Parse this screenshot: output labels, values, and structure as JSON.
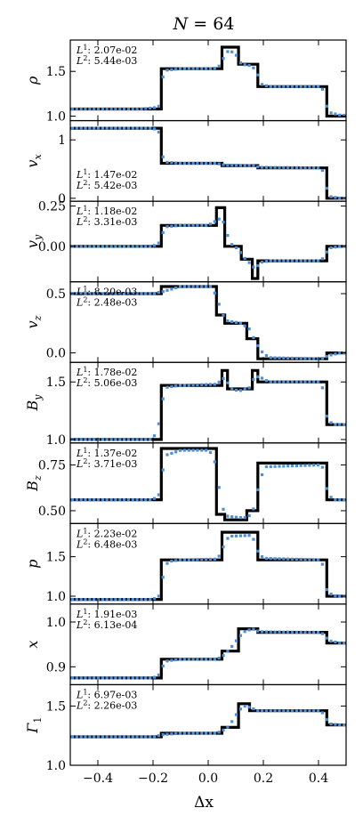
{
  "figure": {
    "title": "N = 64",
    "title_var": "N",
    "title_val": "= 64",
    "xlabel": "Δx"
  },
  "chart_data": [
    {
      "type": "line",
      "ylabel": "ρ",
      "ylim": [
        0.95,
        1.85
      ],
      "yticks": [
        1.0,
        1.5
      ],
      "ytick_labels": [
        "1.0",
        "1.5"
      ],
      "errors": {
        "L1": "2.07e-02",
        "L2": "5.44e-03"
      },
      "exact": [
        [
          -0.5,
          1.08
        ],
        [
          -0.17,
          1.08
        ],
        [
          -0.17,
          1.53
        ],
        [
          0.05,
          1.53
        ],
        [
          0.05,
          1.77
        ],
        [
          0.11,
          1.77
        ],
        [
          0.11,
          1.58
        ],
        [
          0.18,
          1.58
        ],
        [
          0.18,
          1.33
        ],
        [
          0.43,
          1.33
        ],
        [
          0.43,
          1.0
        ],
        [
          0.5,
          1.0
        ]
      ],
      "numerical": [
        [
          -0.48,
          1.08
        ],
        [
          -0.24,
          1.08
        ],
        [
          -0.18,
          1.1
        ],
        [
          -0.17,
          1.32
        ],
        [
          -0.16,
          1.51
        ],
        [
          -0.1,
          1.53
        ],
        [
          0.02,
          1.53
        ],
        [
          0.04,
          1.56
        ],
        [
          0.05,
          1.62
        ],
        [
          0.07,
          1.72
        ],
        [
          0.08,
          1.73
        ],
        [
          0.1,
          1.69
        ],
        [
          0.12,
          1.58
        ],
        [
          0.16,
          1.56
        ],
        [
          0.18,
          1.46
        ],
        [
          0.19,
          1.36
        ],
        [
          0.22,
          1.33
        ],
        [
          0.41,
          1.33
        ],
        [
          0.42,
          1.26
        ],
        [
          0.43,
          1.11
        ],
        [
          0.44,
          1.04
        ],
        [
          0.48,
          1.01
        ]
      ]
    },
    {
      "type": "line",
      "ylabel": "v_x",
      "ylim": [
        -0.05,
        1.33
      ],
      "yticks": [
        0,
        1
      ],
      "ytick_labels": [
        "0",
        "1"
      ],
      "errors": {
        "L1": "1.47e-02",
        "L2": "5.42e-03"
      },
      "exact": [
        [
          -0.5,
          1.2
        ],
        [
          -0.17,
          1.2
        ],
        [
          -0.17,
          0.6
        ],
        [
          0.05,
          0.6
        ],
        [
          0.05,
          0.56
        ],
        [
          0.18,
          0.56
        ],
        [
          0.18,
          0.52
        ],
        [
          0.43,
          0.52
        ],
        [
          0.43,
          0.0
        ],
        [
          0.5,
          0.0
        ]
      ],
      "numerical": [
        [
          -0.48,
          1.2
        ],
        [
          -0.2,
          1.2
        ],
        [
          -0.18,
          1.15
        ],
        [
          -0.17,
          0.85
        ],
        [
          -0.16,
          0.62
        ],
        [
          -0.1,
          0.6
        ],
        [
          0.03,
          0.6
        ],
        [
          0.06,
          0.57
        ],
        [
          0.16,
          0.56
        ],
        [
          0.19,
          0.53
        ],
        [
          0.41,
          0.52
        ],
        [
          0.42,
          0.42
        ],
        [
          0.43,
          0.17
        ],
        [
          0.44,
          0.03
        ],
        [
          0.48,
          0.0
        ]
      ]
    },
    {
      "type": "line",
      "ylabel": "v_y",
      "ylim": [
        -0.22,
        0.28
      ],
      "yticks": [
        0.0,
        0.25
      ],
      "ytick_labels": [
        "0.00",
        "0.25"
      ],
      "errors": {
        "L1": "1.18e-02",
        "L2": "3.31e-03"
      },
      "exact": [
        [
          -0.5,
          0.0
        ],
        [
          -0.17,
          0.0
        ],
        [
          -0.17,
          0.13
        ],
        [
          0.03,
          0.13
        ],
        [
          0.03,
          0.24
        ],
        [
          0.06,
          0.24
        ],
        [
          0.06,
          0.0
        ],
        [
          0.12,
          0.0
        ],
        [
          0.12,
          -0.08
        ],
        [
          0.16,
          -0.08
        ],
        [
          0.16,
          -0.2
        ],
        [
          0.18,
          -0.2
        ],
        [
          0.18,
          -0.09
        ],
        [
          0.43,
          -0.09
        ],
        [
          0.43,
          0.0
        ],
        [
          0.5,
          0.0
        ]
      ],
      "numerical": [
        [
          -0.48,
          0.0
        ],
        [
          -0.2,
          0.0
        ],
        [
          -0.17,
          0.03
        ],
        [
          -0.16,
          0.12
        ],
        [
          -0.1,
          0.13
        ],
        [
          0.0,
          0.13
        ],
        [
          0.03,
          0.16
        ],
        [
          0.05,
          0.18
        ],
        [
          0.06,
          0.12
        ],
        [
          0.08,
          0.02
        ],
        [
          0.11,
          -0.02
        ],
        [
          0.13,
          -0.07
        ],
        [
          0.16,
          -0.12
        ],
        [
          0.17,
          -0.14
        ],
        [
          0.19,
          -0.1
        ],
        [
          0.22,
          -0.09
        ],
        [
          0.41,
          -0.09
        ],
        [
          0.42,
          -0.06
        ],
        [
          0.44,
          -0.01
        ],
        [
          0.48,
          0.0
        ]
      ]
    },
    {
      "type": "line",
      "ylabel": "v_z",
      "ylim": [
        -0.08,
        0.6
      ],
      "yticks": [
        0.0,
        0.5
      ],
      "ytick_labels": [
        "0.0",
        "0.5"
      ],
      "errors": {
        "L1": "8.20e-03",
        "L2": "2.48e-03"
      },
      "exact": [
        [
          -0.5,
          0.5
        ],
        [
          -0.17,
          0.5
        ],
        [
          -0.17,
          0.56
        ],
        [
          0.03,
          0.56
        ],
        [
          0.03,
          0.32
        ],
        [
          0.06,
          0.32
        ],
        [
          0.06,
          0.25
        ],
        [
          0.14,
          0.25
        ],
        [
          0.14,
          0.12
        ],
        [
          0.18,
          0.12
        ],
        [
          0.18,
          -0.05
        ],
        [
          0.43,
          -0.05
        ],
        [
          0.43,
          0.0
        ],
        [
          0.5,
          0.0
        ]
      ],
      "numerical": [
        [
          -0.48,
          0.5
        ],
        [
          -0.2,
          0.5
        ],
        [
          -0.16,
          0.52
        ],
        [
          -0.1,
          0.56
        ],
        [
          0.01,
          0.56
        ],
        [
          0.03,
          0.48
        ],
        [
          0.05,
          0.33
        ],
        [
          0.07,
          0.27
        ],
        [
          0.12,
          0.25
        ],
        [
          0.15,
          0.2
        ],
        [
          0.17,
          0.1
        ],
        [
          0.19,
          0.02
        ],
        [
          0.22,
          -0.04
        ],
        [
          0.41,
          -0.05
        ],
        [
          0.44,
          -0.02
        ],
        [
          0.48,
          0.0
        ]
      ]
    },
    {
      "type": "line",
      "ylabel": "B_y",
      "ylim": [
        0.97,
        1.67
      ],
      "yticks": [
        1.0,
        1.5
      ],
      "ytick_labels": [
        "1.0",
        "1.5"
      ],
      "errors": {
        "L1": "1.78e-02",
        "L2": "5.06e-03"
      },
      "exact": [
        [
          -0.5,
          1.0
        ],
        [
          -0.17,
          1.0
        ],
        [
          -0.17,
          1.47
        ],
        [
          0.05,
          1.47
        ],
        [
          0.05,
          1.6
        ],
        [
          0.07,
          1.6
        ],
        [
          0.07,
          1.44
        ],
        [
          0.16,
          1.44
        ],
        [
          0.16,
          1.6
        ],
        [
          0.18,
          1.6
        ],
        [
          0.18,
          1.5
        ],
        [
          0.43,
          1.5
        ],
        [
          0.43,
          1.13
        ],
        [
          0.5,
          1.13
        ]
      ],
      "numerical": [
        [
          -0.48,
          1.0
        ],
        [
          -0.2,
          1.0
        ],
        [
          -0.17,
          1.2
        ],
        [
          -0.16,
          1.45
        ],
        [
          -0.1,
          1.47
        ],
        [
          0.03,
          1.48
        ],
        [
          0.05,
          1.52
        ],
        [
          0.06,
          1.54
        ],
        [
          0.08,
          1.45
        ],
        [
          0.11,
          1.42
        ],
        [
          0.15,
          1.45
        ],
        [
          0.17,
          1.55
        ],
        [
          0.19,
          1.54
        ],
        [
          0.22,
          1.5
        ],
        [
          0.41,
          1.5
        ],
        [
          0.42,
          1.38
        ],
        [
          0.43,
          1.2
        ],
        [
          0.45,
          1.13
        ],
        [
          0.48,
          1.13
        ]
      ]
    },
    {
      "type": "line",
      "ylabel": "B_z",
      "ylim": [
        0.43,
        0.87
      ],
      "yticks": [
        0.5,
        0.75
      ],
      "ytick_labels": [
        "0.50",
        "0.75"
      ],
      "errors": {
        "L1": "1.37e-02",
        "L2": "3.71e-03"
      },
      "exact": [
        [
          -0.5,
          0.56
        ],
        [
          -0.17,
          0.56
        ],
        [
          -0.17,
          0.84
        ],
        [
          0.03,
          0.84
        ],
        [
          0.03,
          0.48
        ],
        [
          0.06,
          0.48
        ],
        [
          0.06,
          0.45
        ],
        [
          0.14,
          0.45
        ],
        [
          0.14,
          0.5
        ],
        [
          0.18,
          0.5
        ],
        [
          0.18,
          0.76
        ],
        [
          0.43,
          0.76
        ],
        [
          0.43,
          0.56
        ],
        [
          0.5,
          0.56
        ]
      ],
      "numerical": [
        [
          -0.48,
          0.56
        ],
        [
          -0.2,
          0.56
        ],
        [
          -0.17,
          0.6
        ],
        [
          -0.16,
          0.8
        ],
        [
          -0.1,
          0.83
        ],
        [
          0.0,
          0.83
        ],
        [
          0.02,
          0.8
        ],
        [
          0.04,
          0.62
        ],
        [
          0.05,
          0.52
        ],
        [
          0.07,
          0.47
        ],
        [
          0.13,
          0.46
        ],
        [
          0.16,
          0.48
        ],
        [
          0.17,
          0.55
        ],
        [
          0.19,
          0.68
        ],
        [
          0.21,
          0.74
        ],
        [
          0.41,
          0.75
        ],
        [
          0.42,
          0.72
        ],
        [
          0.43,
          0.62
        ],
        [
          0.45,
          0.56
        ],
        [
          0.48,
          0.56
        ]
      ]
    },
    {
      "type": "line",
      "ylabel": "p",
      "ylim": [
        0.9,
        1.92
      ],
      "yticks": [
        1.0,
        1.5
      ],
      "ytick_labels": [
        "1.0",
        "1.5"
      ],
      "errors": {
        "L1": "2.23e-02",
        "L2": "6.48e-03"
      },
      "exact": [
        [
          -0.5,
          0.96
        ],
        [
          -0.17,
          0.96
        ],
        [
          -0.17,
          1.46
        ],
        [
          0.05,
          1.46
        ],
        [
          0.05,
          1.81
        ],
        [
          0.18,
          1.81
        ],
        [
          0.18,
          1.46
        ],
        [
          0.43,
          1.46
        ],
        [
          0.43,
          1.0
        ],
        [
          0.5,
          1.0
        ]
      ],
      "numerical": [
        [
          -0.48,
          0.96
        ],
        [
          -0.2,
          0.96
        ],
        [
          -0.17,
          1.02
        ],
        [
          -0.16,
          1.38
        ],
        [
          -0.14,
          1.44
        ],
        [
          -0.1,
          1.46
        ],
        [
          0.03,
          1.47
        ],
        [
          0.05,
          1.55
        ],
        [
          0.06,
          1.7
        ],
        [
          0.08,
          1.76
        ],
        [
          0.15,
          1.77
        ],
        [
          0.17,
          1.7
        ],
        [
          0.18,
          1.57
        ],
        [
          0.2,
          1.48
        ],
        [
          0.41,
          1.46
        ],
        [
          0.42,
          1.33
        ],
        [
          0.43,
          1.08
        ],
        [
          0.45,
          1.01
        ],
        [
          0.48,
          1.0
        ]
      ]
    },
    {
      "type": "line",
      "ylabel": "x",
      "ylim": [
        0.86,
        1.04
      ],
      "yticks": [
        0.9,
        1.0
      ],
      "ytick_labels": [
        "0.9",
        "1.0"
      ],
      "errors": {
        "L1": "1.91e-03",
        "L2": "6.13e-04"
      },
      "exact": [
        [
          -0.5,
          0.875
        ],
        [
          -0.17,
          0.875
        ],
        [
          -0.17,
          0.917
        ],
        [
          0.05,
          0.917
        ],
        [
          0.05,
          0.935
        ],
        [
          0.11,
          0.935
        ],
        [
          0.11,
          0.985
        ],
        [
          0.18,
          0.985
        ],
        [
          0.18,
          0.977
        ],
        [
          0.43,
          0.977
        ],
        [
          0.43,
          0.953
        ],
        [
          0.5,
          0.953
        ]
      ],
      "numerical": [
        [
          -0.48,
          0.875
        ],
        [
          -0.2,
          0.875
        ],
        [
          -0.17,
          0.885
        ],
        [
          -0.16,
          0.912
        ],
        [
          -0.1,
          0.917
        ],
        [
          0.03,
          0.917
        ],
        [
          0.05,
          0.922
        ],
        [
          0.07,
          0.935
        ],
        [
          0.09,
          0.948
        ],
        [
          0.11,
          0.965
        ],
        [
          0.13,
          0.978
        ],
        [
          0.16,
          0.985
        ],
        [
          0.18,
          0.98
        ],
        [
          0.2,
          0.978
        ],
        [
          0.41,
          0.977
        ],
        [
          0.42,
          0.97
        ],
        [
          0.44,
          0.958
        ],
        [
          0.48,
          0.953
        ]
      ]
    },
    {
      "type": "line",
      "ylabel": "Γ_1",
      "ylim": [
        1.0,
        1.68
      ],
      "yticks": [
        1.0,
        1.5
      ],
      "ytick_labels": [
        "1.0",
        "1.5"
      ],
      "errors": {
        "L1": "6.97e-03",
        "L2": "2.26e-03"
      },
      "exact": [
        [
          -0.5,
          1.24
        ],
        [
          -0.17,
          1.24
        ],
        [
          -0.17,
          1.27
        ],
        [
          0.05,
          1.27
        ],
        [
          0.05,
          1.32
        ],
        [
          0.11,
          1.32
        ],
        [
          0.11,
          1.52
        ],
        [
          0.15,
          1.52
        ],
        [
          0.15,
          1.46
        ],
        [
          0.43,
          1.46
        ],
        [
          0.43,
          1.34
        ],
        [
          0.5,
          1.34
        ]
      ],
      "numerical": [
        [
          -0.48,
          1.24
        ],
        [
          -0.2,
          1.24
        ],
        [
          -0.16,
          1.26
        ],
        [
          -0.1,
          1.27
        ],
        [
          0.03,
          1.27
        ],
        [
          0.05,
          1.29
        ],
        [
          0.07,
          1.32
        ],
        [
          0.09,
          1.38
        ],
        [
          0.11,
          1.46
        ],
        [
          0.13,
          1.5
        ],
        [
          0.15,
          1.49
        ],
        [
          0.18,
          1.46
        ],
        [
          0.41,
          1.46
        ],
        [
          0.42,
          1.42
        ],
        [
          0.44,
          1.35
        ],
        [
          0.48,
          1.34
        ]
      ]
    }
  ],
  "x_axis": {
    "xlim": [
      -0.5,
      0.5
    ],
    "xticks": [
      -0.4,
      -0.2,
      0.0,
      0.2,
      0.4
    ],
    "xtick_labels": [
      "−0.4",
      "−0.2",
      "0.0",
      "0.2",
      "0.4"
    ]
  },
  "colors": {
    "exact": "#000000",
    "numerical": "#4c8fd6"
  }
}
